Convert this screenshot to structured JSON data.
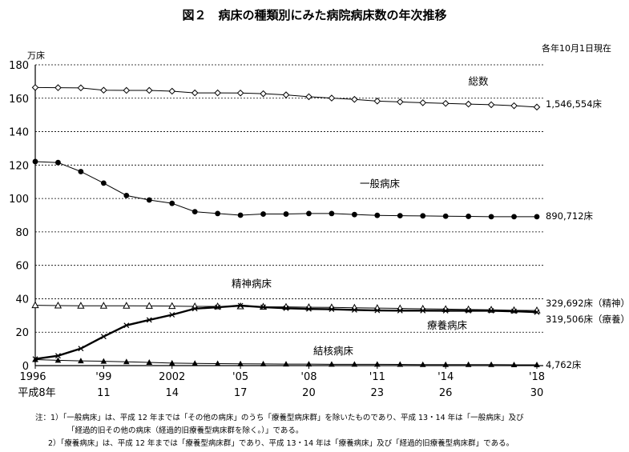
{
  "title": "図２　病床の種類別にみた病院病床数の年次推移",
  "as_of": "各年10月1日現在",
  "notes": [
    "注：1）「一般病床」は、平成 12 年までは「その他の病床」のうち「療養型病床群」を除いたものであり、平成 13・14 年は「一般病床」及び",
    "「経過的旧その他の病床（経過的旧療養型病床群を除く。）」である。",
    "2）「療養病床」は、平成 12 年までは「療養型病床群」であり、平成 13・14 年は「療養病床」及び「経過的旧療養型病床群」である。"
  ],
  "chart_data": {
    "type": "line",
    "ylabel": "万床",
    "ylim": [
      0,
      180
    ],
    "yticks": [
      0,
      20,
      40,
      60,
      80,
      100,
      120,
      140,
      160,
      180
    ],
    "grid": true,
    "x": [
      1996,
      1997,
      1998,
      1999,
      2000,
      2001,
      2002,
      2003,
      2004,
      2005,
      2006,
      2007,
      2008,
      2009,
      2010,
      2011,
      2012,
      2013,
      2014,
      2015,
      2016,
      2017,
      2018
    ],
    "x_tick_labels_top": [
      "1996",
      "'99",
      "2002",
      "'05",
      "'08",
      "'11",
      "'14",
      "'18"
    ],
    "x_tick_labels_bottom": [
      "平成8年",
      "11",
      "14",
      "17",
      "20",
      "23",
      "26",
      "30"
    ],
    "x_tick_positions": [
      1996,
      1999,
      2002,
      2005,
      2008,
      2011,
      2014,
      2018
    ],
    "series": [
      {
        "name": "総数",
        "marker": "diamond-open",
        "values": [
          166.4,
          166.3,
          166.2,
          164.8,
          164.7,
          164.7,
          164.2,
          163.2,
          163.2,
          163.1,
          162.7,
          162.0,
          160.9,
          160.1,
          159.3,
          158.3,
          157.8,
          157.3,
          156.9,
          156.5,
          156.1,
          155.5,
          154.7
        ],
        "end_label": "1,546,554床",
        "color": "#000000"
      },
      {
        "name": "一般病床",
        "marker": "circle-filled",
        "values": [
          122.1,
          121.5,
          116.1,
          109.2,
          101.8,
          99.1,
          97.1,
          92.1,
          91.0,
          90.0,
          90.7,
          90.7,
          91.0,
          91.0,
          90.4,
          89.9,
          89.7,
          89.6,
          89.4,
          89.3,
          89.1,
          89.1,
          89.1
        ],
        "end_label": "890,712床",
        "color": "#000000"
      },
      {
        "name": "精神病床",
        "marker": "triangle-open",
        "values": [
          36.1,
          35.9,
          35.8,
          35.8,
          35.8,
          35.7,
          35.6,
          35.4,
          35.4,
          35.4,
          35.2,
          35.1,
          34.9,
          34.8,
          34.6,
          34.4,
          34.2,
          34.0,
          33.8,
          33.6,
          33.4,
          33.1,
          33.0
        ],
        "end_label": "329,692床（精神）",
        "color": "#000000"
      },
      {
        "name": "療養病床",
        "marker": "x",
        "values": [
          4.0,
          5.9,
          10.2,
          17.4,
          24.1,
          27.3,
          30.4,
          34.1,
          34.9,
          35.9,
          35.0,
          34.3,
          33.9,
          33.7,
          33.3,
          33.0,
          32.9,
          32.9,
          32.8,
          32.8,
          32.8,
          32.5,
          32.0
        ],
        "end_label": "319,506床（療養）",
        "color": "#000000"
      },
      {
        "name": "結核病床",
        "marker": "triangle-filled",
        "values": [
          3.6,
          3.2,
          2.8,
          2.6,
          2.3,
          1.9,
          1.5,
          1.3,
          1.2,
          1.1,
          1.0,
          0.9,
          0.9,
          0.8,
          0.8,
          0.8,
          0.7,
          0.6,
          0.6,
          0.6,
          0.6,
          0.5,
          0.5
        ],
        "end_label": "4,762床",
        "color": "#000000"
      }
    ]
  }
}
